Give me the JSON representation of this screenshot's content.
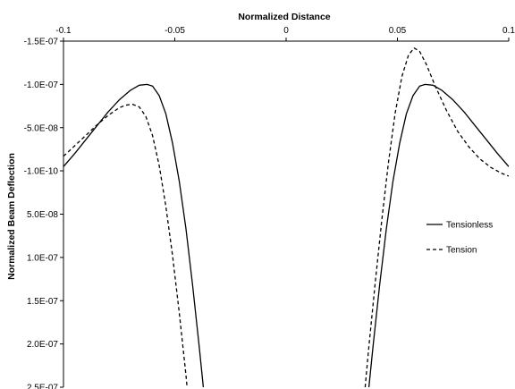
{
  "chart_data": {
    "type": "line",
    "xlabel": "Normalized Distance",
    "ylabel": "Normalized Beam Deflection",
    "xlim": [
      -0.1,
      0.1
    ],
    "ylim": [
      -1.5e-07,
      2.5e-07
    ],
    "y_inverted": true,
    "x_axis_position": "top",
    "grid": false,
    "legend_position": "right",
    "x_ticks": [
      {
        "value": -0.1,
        "label": "-0.1"
      },
      {
        "value": -0.05,
        "label": "-0.05"
      },
      {
        "value": 0,
        "label": "0"
      },
      {
        "value": 0.05,
        "label": "0.05"
      },
      {
        "value": 0.1,
        "label": "0.1"
      }
    ],
    "y_ticks": [
      {
        "value": -1.5e-07,
        "label": "-1.5E-07"
      },
      {
        "value": -1e-07,
        "label": "-1.0E-07"
      },
      {
        "value": -5e-08,
        "label": "-5.0E-08"
      },
      {
        "value": -1e-10,
        "label": "-1.0E-10"
      },
      {
        "value": 5e-08,
        "label": "5.0E-08"
      },
      {
        "value": 1e-07,
        "label": "1.0E-07"
      },
      {
        "value": 1.5e-07,
        "label": "1.5E-07"
      },
      {
        "value": 2e-07,
        "label": "2.0E-07"
      },
      {
        "value": 2.5e-07,
        "label": "2.5E-07"
      }
    ],
    "series": [
      {
        "name": "Tensionless",
        "style": "solid",
        "color": "#000000",
        "segments": [
          [
            [
              -0.1,
              -5e-09
            ],
            [
              -0.095,
              -2e-08
            ],
            [
              -0.09,
              -3.6e-08
            ],
            [
              -0.085,
              -5.2e-08
            ],
            [
              -0.08,
              -6.8e-08
            ],
            [
              -0.075,
              -8.2e-08
            ],
            [
              -0.07,
              -9.3e-08
            ],
            [
              -0.066,
              -9.9e-08
            ],
            [
              -0.0625,
              -1e-07
            ],
            [
              -0.06,
              -9.8e-08
            ],
            [
              -0.057,
              -8.7e-08
            ],
            [
              -0.054,
              -6.6e-08
            ],
            [
              -0.051,
              -3.2e-08
            ],
            [
              -0.048,
              1.2e-08
            ],
            [
              -0.045,
              6.7e-08
            ],
            [
              -0.042,
              1.32e-07
            ],
            [
              -0.039,
              2.04e-07
            ],
            [
              -0.0372,
              2.5e-07
            ]
          ],
          [
            [
              0.0372,
              2.5e-07
            ],
            [
              0.039,
              2.04e-07
            ],
            [
              0.042,
              1.32e-07
            ],
            [
              0.045,
              6.7e-08
            ],
            [
              0.048,
              1.2e-08
            ],
            [
              0.051,
              -3.2e-08
            ],
            [
              0.054,
              -6.6e-08
            ],
            [
              0.057,
              -8.7e-08
            ],
            [
              0.06,
              -9.8e-08
            ],
            [
              0.0625,
              -1e-07
            ],
            [
              0.066,
              -9.9e-08
            ],
            [
              0.07,
              -9.3e-08
            ],
            [
              0.075,
              -8.2e-08
            ],
            [
              0.08,
              -6.8e-08
            ],
            [
              0.085,
              -5.2e-08
            ],
            [
              0.09,
              -3.6e-08
            ],
            [
              0.095,
              -2e-08
            ],
            [
              0.1,
              -5e-09
            ]
          ]
        ]
      },
      {
        "name": "Tension",
        "style": "dashed",
        "color": "#000000",
        "segments": [
          [
            [
              -0.1,
              -1.7e-08
            ],
            [
              -0.095,
              -2.9e-08
            ],
            [
              -0.09,
              -4.1e-08
            ],
            [
              -0.085,
              -5.3e-08
            ],
            [
              -0.08,
              -6.4e-08
            ],
            [
              -0.075,
              -7.3e-08
            ],
            [
              -0.072,
              -7.6e-08
            ],
            [
              -0.069,
              -7.7e-08
            ],
            [
              -0.066,
              -7.4e-08
            ],
            [
              -0.063,
              -6.3e-08
            ],
            [
              -0.06,
              -4.1e-08
            ],
            [
              -0.057,
              -6e-09
            ],
            [
              -0.054,
              4.1e-08
            ],
            [
              -0.051,
              9.8e-08
            ],
            [
              -0.048,
              1.64e-07
            ],
            [
              -0.045,
              2.36e-07
            ],
            [
              -0.0445,
              2.5e-07
            ]
          ],
          [
            [
              0.0355,
              2.5e-07
            ],
            [
              0.037,
              2.08e-07
            ],
            [
              0.04,
              1.3e-07
            ],
            [
              0.043,
              5.6e-08
            ],
            [
              0.046,
              -1e-08
            ],
            [
              0.049,
              -6.7e-08
            ],
            [
              0.052,
              -1.09e-07
            ],
            [
              0.055,
              -1.34e-07
            ],
            [
              0.0575,
              -1.42e-07
            ],
            [
              0.06,
              -1.38e-07
            ],
            [
              0.063,
              -1.23e-07
            ],
            [
              0.067,
              -9.8e-08
            ],
            [
              0.072,
              -7e-08
            ],
            [
              0.077,
              -4.6e-08
            ],
            [
              0.082,
              -2.8e-08
            ],
            [
              0.087,
              -1.4e-08
            ],
            [
              0.092,
              -4e-09
            ],
            [
              0.097,
              3e-09
            ],
            [
              0.1,
              6e-09
            ]
          ]
        ]
      }
    ]
  }
}
